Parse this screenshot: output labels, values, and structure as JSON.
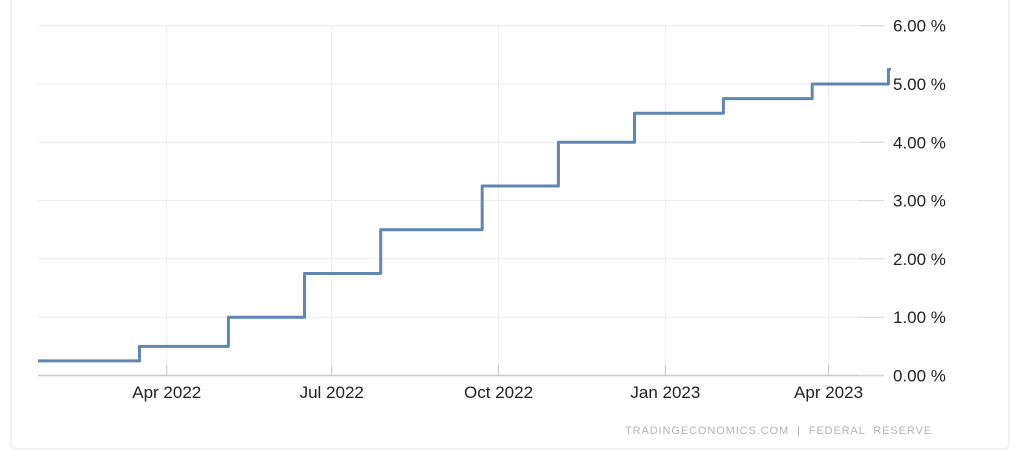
{
  "chart_data": {
    "type": "line",
    "step": "after",
    "xlabel": "",
    "ylabel": "",
    "ylim": [
      0,
      6.3
    ],
    "grid": true,
    "y_axis_position": "right",
    "attribution": "TRADINGECONOMICS.COM | FEDERAL RESERVE",
    "colors": {
      "line": "#5f87b1",
      "grid": "#ececec",
      "axis": "#c9c9c9",
      "tick_text": "#222222",
      "attribution_text": "#b4b4b4"
    },
    "x_domain": [
      "2022-01-20",
      "2023-05-06"
    ],
    "x_ticks": [
      {
        "date": "2022-04-01",
        "label": "Apr 2022"
      },
      {
        "date": "2022-07-01",
        "label": "Jul 2022"
      },
      {
        "date": "2022-10-01",
        "label": "Oct 2022"
      },
      {
        "date": "2023-01-01",
        "label": "Jan 2023"
      },
      {
        "date": "2023-04-01",
        "label": "Apr 2023"
      }
    ],
    "y_ticks": [
      {
        "value": 0,
        "label": "0.00 %"
      },
      {
        "value": 1,
        "label": "1.00 %"
      },
      {
        "value": 2,
        "label": "2.00 %"
      },
      {
        "value": 3,
        "label": "3.00 %"
      },
      {
        "value": 4,
        "label": "4.00 %"
      },
      {
        "value": 5,
        "label": "5.00 %"
      },
      {
        "value": 6,
        "label": "6.00 %"
      }
    ],
    "series": [
      {
        "color": "#5f87b1",
        "points": [
          {
            "date": "2022-01-20",
            "value": 0.25
          },
          {
            "date": "2022-03-17",
            "value": 0.5
          },
          {
            "date": "2022-05-05",
            "value": 1.0
          },
          {
            "date": "2022-06-16",
            "value": 1.75
          },
          {
            "date": "2022-07-28",
            "value": 2.5
          },
          {
            "date": "2022-09-22",
            "value": 3.25
          },
          {
            "date": "2022-11-03",
            "value": 4.0
          },
          {
            "date": "2022-12-15",
            "value": 4.5
          },
          {
            "date": "2023-02-02",
            "value": 4.75
          },
          {
            "date": "2023-03-23",
            "value": 5.0
          },
          {
            "date": "2023-05-04",
            "value": 5.25
          }
        ]
      }
    ]
  }
}
